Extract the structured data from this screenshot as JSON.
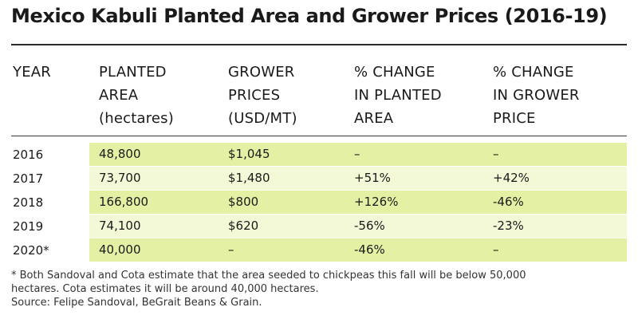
{
  "title": "Mexico Kabuli Planted Area and Grower Prices (2016-19)",
  "chart_data": {
    "type": "table",
    "title": "Mexico Kabuli Planted Area and Grower Prices (2016-19)",
    "columns": [
      [
        "YEAR"
      ],
      [
        "PLANTED",
        "AREA",
        "(hectares)"
      ],
      [
        "GROWER",
        "PRICES",
        "(USD/MT)"
      ],
      [
        "% CHANGE",
        "IN PLANTED",
        "AREA"
      ],
      [
        "% CHANGE",
        "IN GROWER",
        "PRICE"
      ]
    ],
    "rows": [
      {
        "year": "2016",
        "area": "48,800",
        "price": "$1,045",
        "area_change": "–",
        "price_change": "–"
      },
      {
        "year": "2017",
        "area": "73,700",
        "price": "$1,480",
        "area_change": "+51%",
        "price_change": "+42%"
      },
      {
        "year": "2018",
        "area": "166,800",
        "price": "$800",
        "area_change": "+126%",
        "price_change": "-46%"
      },
      {
        "year": "2019",
        "area": "74,100",
        "price": "$620",
        "area_change": "-56%",
        "price_change": "-23%"
      },
      {
        "year": "2020*",
        "area": "40,000",
        "price": "–",
        "area_change": "-46%",
        "price_change": "–"
      }
    ],
    "row_colors": [
      "#e4f1a4",
      "#f3f8d6",
      "#e4f1a4",
      "#f3f8d6",
      "#e4f1a4"
    ]
  },
  "footnote": [
    "* Both Sandoval and Cota estimate that the area seeded to chickpeas this fall will be below 50,000",
    "hectares. Cota estimates it will be around 40,000 hectares.",
    "Source: Felipe Sandoval, BeGrait Beans & Grain."
  ]
}
